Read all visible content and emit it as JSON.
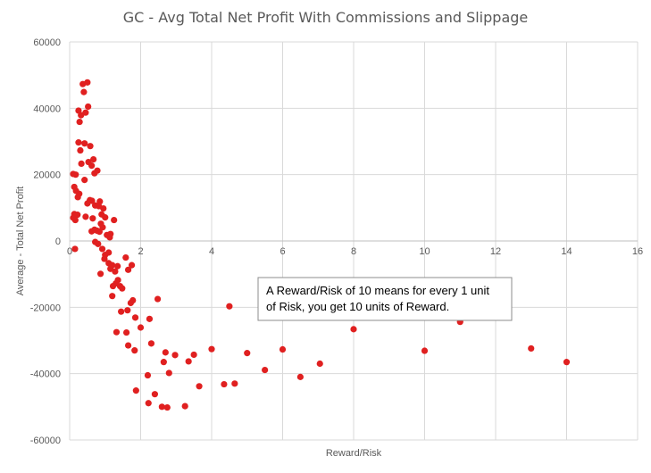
{
  "chart_data": {
    "type": "scatter",
    "title": "GC - Avg Total Net Profit With Commissions and Slippage",
    "xlabel": "Reward/Risk",
    "ylabel": "Average - Total Net Profit",
    "xlim": [
      0,
      16
    ],
    "ylim": [
      -60000,
      60000
    ],
    "x_ticks": [
      0,
      2,
      4,
      6,
      8,
      10,
      12,
      14,
      16
    ],
    "y_ticks": [
      -60000,
      -40000,
      -20000,
      0,
      20000,
      40000,
      60000
    ],
    "grid": true,
    "legend": "none",
    "marker_color": "#e02020",
    "annotation": {
      "lines": [
        "A Reward/Risk of 10 means for every 1 unit",
        "of Risk, you get 10 units of Reward."
      ]
    },
    "points": [
      [
        0.37,
        47300
      ],
      [
        0.5,
        47800
      ],
      [
        0.4,
        44900
      ],
      [
        0.52,
        40500
      ],
      [
        0.25,
        39300
      ],
      [
        0.32,
        37900
      ],
      [
        0.45,
        38700
      ],
      [
        0.28,
        35900
      ],
      [
        0.25,
        29700
      ],
      [
        0.42,
        29400
      ],
      [
        0.58,
        28600
      ],
      [
        0.3,
        27300
      ],
      [
        0.67,
        24600
      ],
      [
        0.53,
        23800
      ],
      [
        0.62,
        22700
      ],
      [
        0.33,
        23300
      ],
      [
        0.78,
        21200
      ],
      [
        0.7,
        20400
      ],
      [
        0.1,
        20200
      ],
      [
        0.17,
        20000
      ],
      [
        0.42,
        18400
      ],
      [
        0.13,
        16300
      ],
      [
        0.18,
        15100
      ],
      [
        0.27,
        14200
      ],
      [
        0.23,
        13200
      ],
      [
        0.57,
        12300
      ],
      [
        0.63,
        12100
      ],
      [
        0.85,
        11900
      ],
      [
        0.5,
        11300
      ],
      [
        0.72,
        10700
      ],
      [
        0.82,
        10500
      ],
      [
        0.95,
        9800
      ],
      [
        0.13,
        8100
      ],
      [
        0.22,
        7900
      ],
      [
        0.45,
        7300
      ],
      [
        0.65,
        6800
      ],
      [
        0.9,
        8000
      ],
      [
        1.0,
        7100
      ],
      [
        0.88,
        5200
      ],
      [
        0.7,
        3400
      ],
      [
        0.62,
        2900
      ],
      [
        0.77,
        3100
      ],
      [
        0.84,
        2800
      ],
      [
        0.93,
        4100
      ],
      [
        1.05,
        1800
      ],
      [
        1.13,
        1100
      ],
      [
        1.15,
        2100
      ],
      [
        1.25,
        6300
      ],
      [
        0.72,
        -300
      ],
      [
        0.8,
        -900
      ],
      [
        0.92,
        -2400
      ],
      [
        1.0,
        -4200
      ],
      [
        0.98,
        -5400
      ],
      [
        1.1,
        -6700
      ],
      [
        1.2,
        -7300
      ],
      [
        0.15,
        -2400
      ],
      [
        0.1,
        7000
      ],
      [
        0.16,
        6300
      ],
      [
        1.1,
        -3500
      ],
      [
        1.15,
        -8400
      ],
      [
        1.28,
        -9200
      ],
      [
        1.35,
        -7600
      ],
      [
        0.87,
        -9900
      ],
      [
        1.22,
        -13600
      ],
      [
        1.3,
        -12800
      ],
      [
        1.36,
        -11800
      ],
      [
        1.48,
        -14300
      ],
      [
        1.42,
        -13600
      ],
      [
        1.2,
        -16600
      ],
      [
        1.45,
        -21300
      ],
      [
        1.58,
        -5000
      ],
      [
        1.65,
        -8700
      ],
      [
        1.75,
        -7300
      ],
      [
        1.63,
        -20900
      ],
      [
        1.72,
        -18700
      ],
      [
        1.85,
        -23100
      ],
      [
        1.78,
        -17900
      ],
      [
        2.0,
        -26100
      ],
      [
        1.32,
        -27500
      ],
      [
        1.6,
        -27600
      ],
      [
        1.65,
        -31500
      ],
      [
        1.83,
        -33000
      ],
      [
        2.25,
        -23500
      ],
      [
        2.48,
        -17500
      ],
      [
        2.3,
        -30900
      ],
      [
        2.7,
        -33600
      ],
      [
        2.65,
        -36500
      ],
      [
        2.97,
        -34400
      ],
      [
        3.35,
        -36300
      ],
      [
        3.5,
        -34300
      ],
      [
        2.2,
        -40500
      ],
      [
        2.8,
        -39800
      ],
      [
        1.87,
        -45100
      ],
      [
        2.4,
        -46200
      ],
      [
        2.22,
        -48900
      ],
      [
        2.6,
        -50000
      ],
      [
        2.75,
        -50200
      ],
      [
        3.25,
        -49800
      ],
      [
        3.65,
        -43800
      ],
      [
        4.0,
        -32600
      ],
      [
        4.35,
        -43200
      ],
      [
        4.5,
        -19700
      ],
      [
        4.65,
        -43000
      ],
      [
        5.0,
        -33800
      ],
      [
        5.5,
        -38900
      ],
      [
        6.0,
        -32700
      ],
      [
        6.5,
        -41000
      ],
      [
        7.05,
        -37000
      ],
      [
        8.0,
        -26600
      ],
      [
        10.0,
        -33100
      ],
      [
        11.0,
        -24400
      ],
      [
        13.0,
        -32400
      ],
      [
        14.0,
        -36500
      ]
    ]
  }
}
